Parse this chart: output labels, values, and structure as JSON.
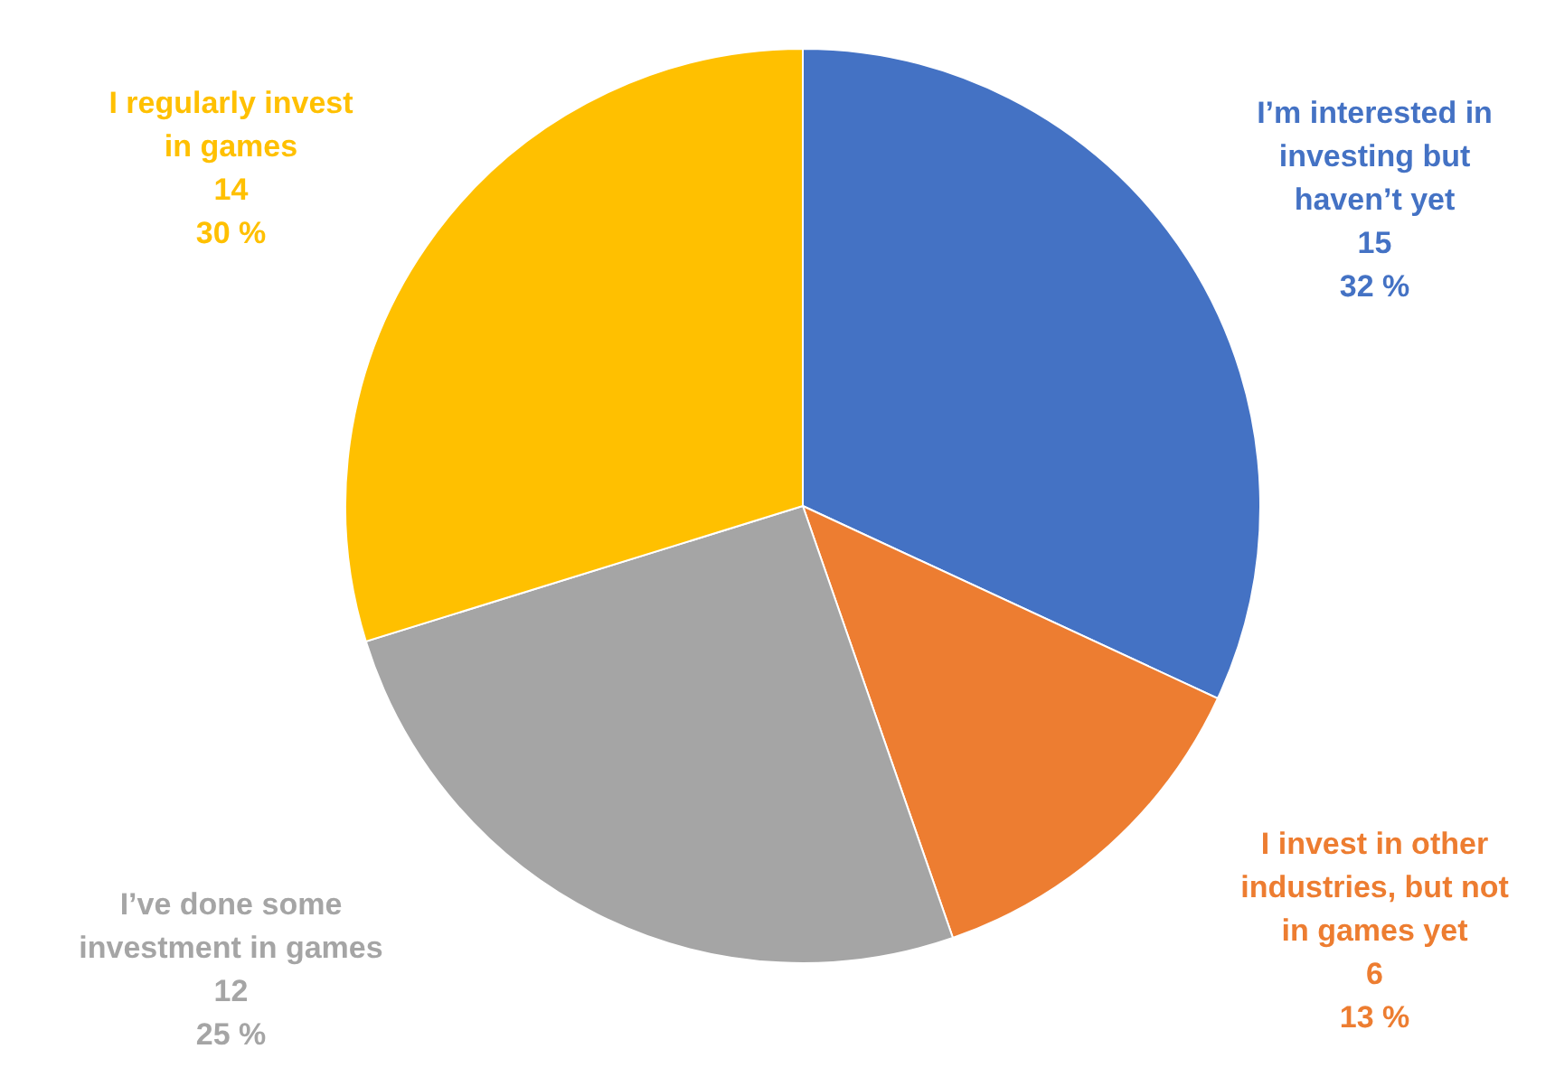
{
  "chart_data": {
    "type": "pie",
    "categories": [
      "I’m interested in investing but haven’t yet",
      "I invest in other industries, but not in games yet",
      "I’ve done some investment in games",
      "I regularly invest in games"
    ],
    "values": [
      15,
      6,
      12,
      14
    ],
    "colors": [
      "#4472c4",
      "#ed7d31",
      "#a5a5a5",
      "#ffc000"
    ],
    "value_labels": [
      "15\n32 %",
      "6\n13 %",
      "12\n25 %",
      "14\n30 %"
    ]
  }
}
